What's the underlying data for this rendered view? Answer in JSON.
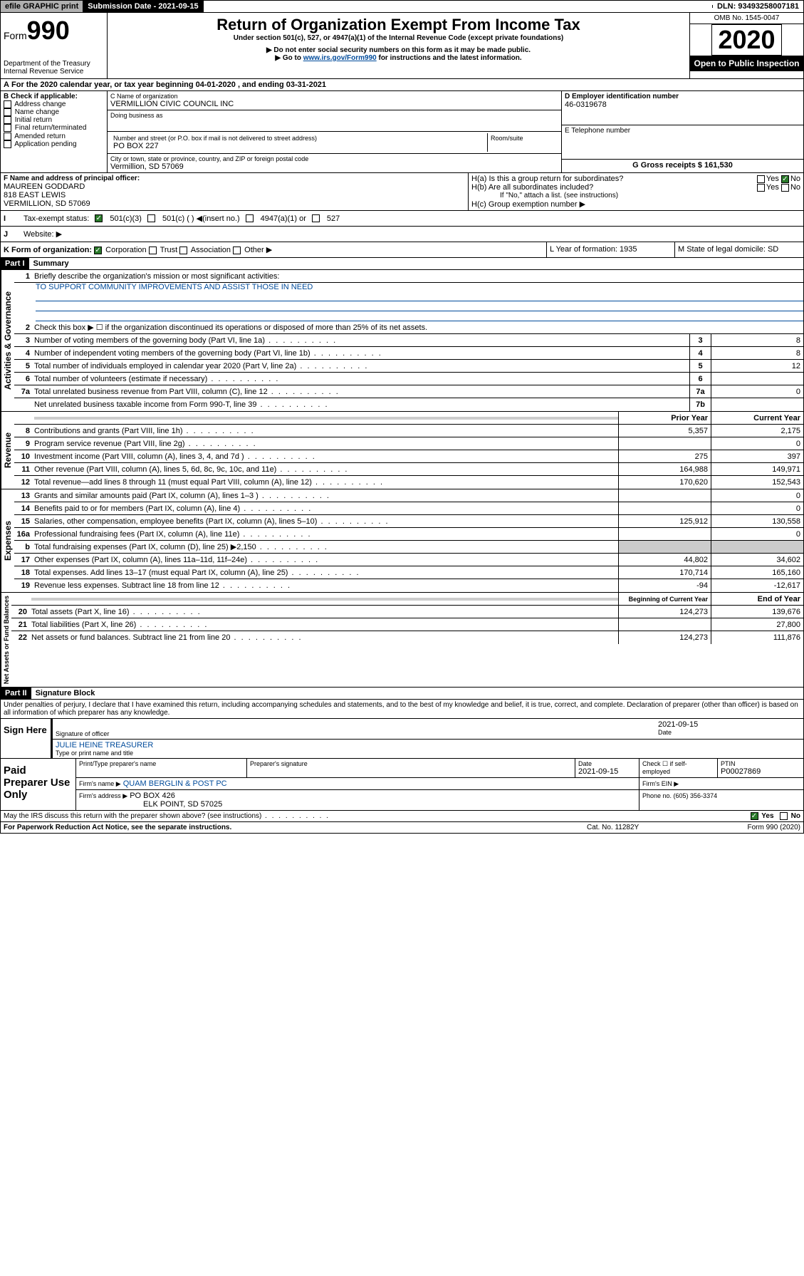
{
  "top": {
    "efile": "efile GRAPHIC print",
    "submission": "Submission Date - 2021-09-15",
    "dln": "DLN: 93493258007181"
  },
  "header": {
    "form": "Form",
    "form_num": "990",
    "dept": "Department of the Treasury",
    "irs": "Internal Revenue Service",
    "title": "Return of Organization Exempt From Income Tax",
    "subtitle": "Under section 501(c), 527, or 4947(a)(1) of the Internal Revenue Code (except private foundations)",
    "note1": "▶ Do not enter social security numbers on this form as it may be made public.",
    "note2_pre": "▶ Go to ",
    "note2_link": "www.irs.gov/Form990",
    "note2_post": " for instructions and the latest information.",
    "omb": "OMB No. 1545-0047",
    "year": "2020",
    "open": "Open to Public Inspection"
  },
  "a": {
    "text": "For the 2020 calendar year, or tax year beginning 04-01-2020    , and ending 03-31-2021"
  },
  "b": {
    "label": "B Check if applicable:",
    "items": [
      "Address change",
      "Name change",
      "Initial return",
      "Final return/terminated",
      "Amended return",
      "Application pending"
    ]
  },
  "c": {
    "name_label": "C Name of organization",
    "name": "VERMILLION CIVIC COUNCIL INC",
    "dba_label": "Doing business as",
    "addr_label": "Number and street (or P.O. box if mail is not delivered to street address)",
    "room_label": "Room/suite",
    "addr": "PO BOX 227",
    "city_label": "City or town, state or province, country, and ZIP or foreign postal code",
    "city": "Vermillion, SD  57069"
  },
  "d": {
    "label": "D Employer identification number",
    "val": "46-0319678"
  },
  "e": {
    "label": "E Telephone number",
    "val": ""
  },
  "g": {
    "label": "G Gross receipts $ 161,530"
  },
  "f": {
    "label": "F  Name and address of principal officer:",
    "name": "MAUREEN GODDARD",
    "addr1": "818 EAST LEWIS",
    "addr2": "VERMILLION, SD  57069"
  },
  "h": {
    "a": "H(a)  Is this a group return for subordinates?",
    "b": "H(b)  Are all subordinates included?",
    "b_note": "If \"No,\" attach a list. (see instructions)",
    "c": "H(c)  Group exemption number ▶",
    "yes": "Yes",
    "no": "No"
  },
  "i": {
    "label": "Tax-exempt status:",
    "opts": [
      "501(c)(3)",
      "501(c) (  ) ◀(insert no.)",
      "4947(a)(1) or",
      "527"
    ]
  },
  "j": {
    "label": "Website: ▶"
  },
  "k": {
    "label": "K Form of organization:",
    "opts": [
      "Corporation",
      "Trust",
      "Association",
      "Other ▶"
    ]
  },
  "l": {
    "label": "L Year of formation: 1935"
  },
  "m": {
    "label": "M State of legal domicile: SD"
  },
  "part1": {
    "header": "Part I",
    "title": "Summary",
    "q1": "Briefly describe the organization's mission or most significant activities:",
    "mission": "TO SUPPORT COMMUNITY IMPROVEMENTS AND ASSIST THOSE IN NEED",
    "q2": "Check this box ▶ ☐  if the organization discontinued its operations or disposed of more than 25% of its net assets.",
    "lines": [
      {
        "n": "3",
        "t": "Number of voting members of the governing body (Part VI, line 1a)",
        "box": "3",
        "v": "8"
      },
      {
        "n": "4",
        "t": "Number of independent voting members of the governing body (Part VI, line 1b)",
        "box": "4",
        "v": "8"
      },
      {
        "n": "5",
        "t": "Total number of individuals employed in calendar year 2020 (Part V, line 2a)",
        "box": "5",
        "v": "12"
      },
      {
        "n": "6",
        "t": "Total number of volunteers (estimate if necessary)",
        "box": "6",
        "v": ""
      },
      {
        "n": "7a",
        "t": "Total unrelated business revenue from Part VIII, column (C), line 12",
        "box": "7a",
        "v": "0"
      },
      {
        "n": "",
        "t": "Net unrelated business taxable income from Form 990-T, line 39",
        "box": "7b",
        "v": ""
      }
    ],
    "col_headers": {
      "prior": "Prior Year",
      "current": "Current Year"
    },
    "revenue": [
      {
        "n": "8",
        "t": "Contributions and grants (Part VIII, line 1h)",
        "p": "5,357",
        "c": "2,175"
      },
      {
        "n": "9",
        "t": "Program service revenue (Part VIII, line 2g)",
        "p": "",
        "c": "0"
      },
      {
        "n": "10",
        "t": "Investment income (Part VIII, column (A), lines 3, 4, and 7d )",
        "p": "275",
        "c": "397"
      },
      {
        "n": "11",
        "t": "Other revenue (Part VIII, column (A), lines 5, 6d, 8c, 9c, 10c, and 11e)",
        "p": "164,988",
        "c": "149,971"
      },
      {
        "n": "12",
        "t": "Total revenue—add lines 8 through 11 (must equal Part VIII, column (A), line 12)",
        "p": "170,620",
        "c": "152,543"
      }
    ],
    "expenses": [
      {
        "n": "13",
        "t": "Grants and similar amounts paid (Part IX, column (A), lines 1–3 )",
        "p": "",
        "c": "0"
      },
      {
        "n": "14",
        "t": "Benefits paid to or for members (Part IX, column (A), line 4)",
        "p": "",
        "c": "0"
      },
      {
        "n": "15",
        "t": "Salaries, other compensation, employee benefits (Part IX, column (A), lines 5–10)",
        "p": "125,912",
        "c": "130,558"
      },
      {
        "n": "16a",
        "t": "Professional fundraising fees (Part IX, column (A), line 11e)",
        "p": "",
        "c": "0"
      },
      {
        "n": "b",
        "t": "Total fundraising expenses (Part IX, column (D), line 25) ▶2,150",
        "p": "gray",
        "c": "gray"
      },
      {
        "n": "17",
        "t": "Other expenses (Part IX, column (A), lines 11a–11d, 11f–24e)",
        "p": "44,802",
        "c": "34,602"
      },
      {
        "n": "18",
        "t": "Total expenses. Add lines 13–17 (must equal Part IX, column (A), line 25)",
        "p": "170,714",
        "c": "165,160"
      },
      {
        "n": "19",
        "t": "Revenue less expenses. Subtract line 18 from line 12",
        "p": "-94",
        "c": "-12,617"
      }
    ],
    "bal_headers": {
      "begin": "Beginning of Current Year",
      "end": "End of Year"
    },
    "balances": [
      {
        "n": "20",
        "t": "Total assets (Part X, line 16)",
        "p": "124,273",
        "c": "139,676"
      },
      {
        "n": "21",
        "t": "Total liabilities (Part X, line 26)",
        "p": "",
        "c": "27,800"
      },
      {
        "n": "22",
        "t": "Net assets or fund balances. Subtract line 21 from line 20",
        "p": "124,273",
        "c": "111,876"
      }
    ],
    "vert_labels": {
      "gov": "Activities & Governance",
      "rev": "Revenue",
      "exp": "Expenses",
      "bal": "Net Assets or Fund Balances"
    }
  },
  "part2": {
    "header": "Part II",
    "title": "Signature Block",
    "penalty": "Under penalties of perjury, I declare that I have examined this return, including accompanying schedules and statements, and to the best of my knowledge and belief, it is true, correct, and complete. Declaration of preparer (other than officer) is based on all information of which preparer has any knowledge."
  },
  "sign": {
    "label": "Sign Here",
    "sig_label": "Signature of officer",
    "date": "2021-09-15",
    "date_label": "Date",
    "name": "JULIE HEINE TREASURER",
    "name_label": "Type or print name and title"
  },
  "paid": {
    "label": "Paid Preparer Use Only",
    "h1": "Print/Type preparer's name",
    "h2": "Preparer's signature",
    "h3": "Date",
    "date": "2021-09-15",
    "h4": "Check ☐ if self-employed",
    "h5": "PTIN",
    "ptin": "P00027869",
    "firm_label": "Firm's name    ▶",
    "firm": "QUAM BERGLIN & POST PC",
    "ein_label": "Firm's EIN ▶",
    "addr_label": "Firm's address ▶",
    "addr1": "PO BOX 426",
    "addr2": "ELK POINT, SD  57025",
    "phone_label": "Phone no. (605) 356-3374"
  },
  "discuss": {
    "text": "May the IRS discuss this return with the preparer shown above? (see instructions)",
    "yes": "Yes",
    "no": "No"
  },
  "footer": {
    "left": "For Paperwork Reduction Act Notice, see the separate instructions.",
    "mid": "Cat. No. 11282Y",
    "right": "Form 990 (2020)"
  }
}
